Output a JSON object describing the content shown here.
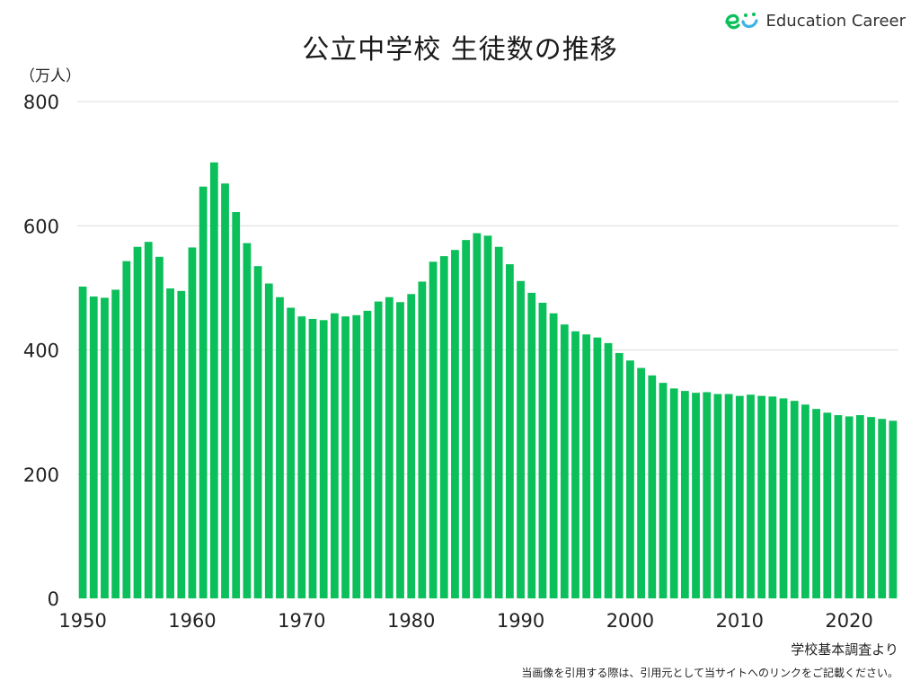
{
  "title": "公立中学校 生徒数の推移",
  "logo": {
    "text": "Education Career",
    "accent": "#0bbf5a",
    "accent2": "#3cb4e6"
  },
  "unit_label": "（万人）",
  "source": "学校基本調査より",
  "note": "当画像を引用する際は、引用元として当サイトへのリンクをご記載ください。",
  "chart_data": {
    "type": "bar",
    "title": "公立中学校 生徒数の推移",
    "xlabel": "",
    "ylabel": "（万人）",
    "ylim": [
      0,
      800
    ],
    "yticks": [
      0,
      200,
      400,
      600,
      800
    ],
    "xticks": [
      1950,
      1960,
      1970,
      1980,
      1990,
      2000,
      2010,
      2020
    ],
    "grid": true,
    "bar_color": "#0bbf5a",
    "categories": [
      1950,
      1951,
      1952,
      1953,
      1954,
      1955,
      1956,
      1957,
      1958,
      1959,
      1960,
      1961,
      1962,
      1963,
      1964,
      1965,
      1966,
      1967,
      1968,
      1969,
      1970,
      1971,
      1972,
      1973,
      1974,
      1975,
      1976,
      1977,
      1978,
      1979,
      1980,
      1981,
      1982,
      1983,
      1984,
      1985,
      1986,
      1987,
      1988,
      1989,
      1990,
      1991,
      1992,
      1993,
      1994,
      1995,
      1996,
      1997,
      1998,
      1999,
      2000,
      2001,
      2002,
      2003,
      2004,
      2005,
      2006,
      2007,
      2008,
      2009,
      2010,
      2011,
      2012,
      2013,
      2014,
      2015,
      2016,
      2017,
      2018,
      2019,
      2020,
      2021,
      2022,
      2023,
      2024
    ],
    "values": [
      502,
      486,
      484,
      497,
      543,
      566,
      574,
      550,
      499,
      495,
      565,
      663,
      702,
      668,
      622,
      572,
      535,
      507,
      485,
      468,
      454,
      450,
      448,
      459,
      454,
      456,
      463,
      478,
      485,
      477,
      490,
      510,
      542,
      551,
      561,
      577,
      588,
      584,
      566,
      538,
      511,
      492,
      476,
      459,
      441,
      430,
      425,
      420,
      411,
      395,
      383,
      371,
      359,
      347,
      338,
      334,
      331,
      332,
      329,
      329,
      326,
      328,
      326,
      325,
      322,
      318,
      312,
      305,
      299,
      295,
      293,
      295,
      292,
      289,
      286
    ]
  }
}
